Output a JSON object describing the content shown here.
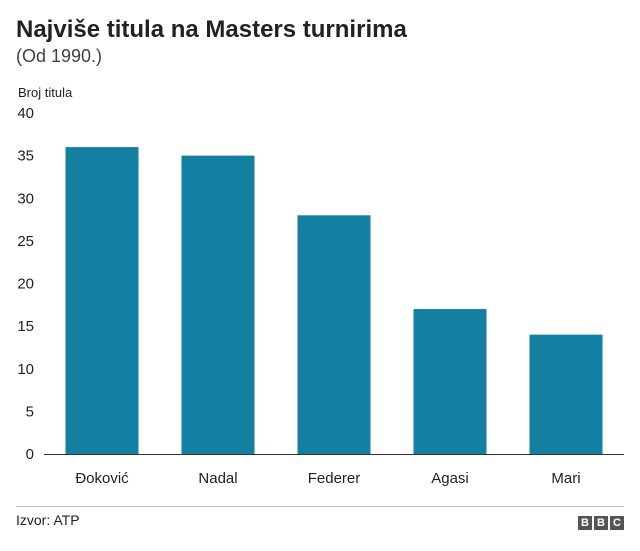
{
  "chart_data": {
    "type": "bar",
    "title": "Najviše titula na Masters turnirima",
    "subtitle": "(Od 1990.)",
    "ylabel": "Broj titula",
    "xlabel": "",
    "categories": [
      "Đoković",
      "Nadal",
      "Federer",
      "Agasi",
      "Mari"
    ],
    "values": [
      36,
      35,
      28,
      17,
      14
    ],
    "ylim": [
      0,
      40
    ],
    "yticks": [
      0,
      5,
      10,
      15,
      20,
      25,
      30,
      35,
      40
    ],
    "bar_color": "#1380a1",
    "grid": false
  },
  "footer": {
    "source": "Izvor: ATP",
    "logo_letters": [
      "B",
      "B",
      "C"
    ]
  }
}
